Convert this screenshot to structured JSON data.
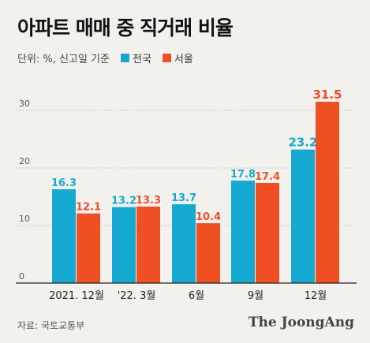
{
  "title": "아파트 매매 중 직거래 비율",
  "subtitle": "단위: %, 신고일 기준",
  "source": "자료: 국토교통부",
  "brand": "The JoongAng",
  "colors": {
    "nationwide": "#16a9d1",
    "seoul": "#f04e23"
  },
  "chart_data": {
    "type": "bar",
    "title": "아파트 매매 중 직거래 비율",
    "subtitle": "단위: %, 신고일 기준",
    "categories": [
      "2021. 12월",
      "'22. 3월",
      "6월",
      "9월",
      "12월"
    ],
    "series": [
      {
        "name": "전국",
        "values": [
          16.3,
          13.2,
          13.7,
          17.8,
          23.2
        ]
      },
      {
        "name": "서울",
        "values": [
          12.1,
          13.3,
          10.4,
          17.4,
          31.5
        ]
      }
    ],
    "yticks": [
      0,
      10,
      20,
      30
    ],
    "ylim": [
      0,
      33
    ],
    "grid": true,
    "legend": "top"
  }
}
